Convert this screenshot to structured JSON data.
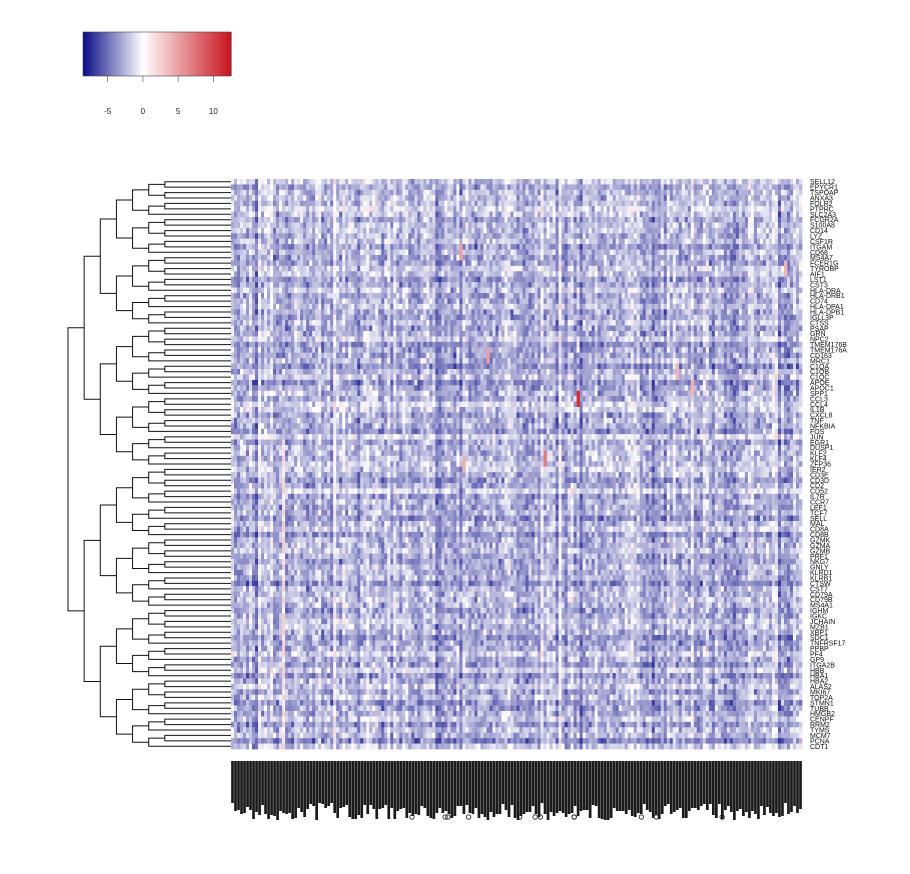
{
  "chart_data": {
    "type": "heatmap",
    "title": "",
    "xlabel": "",
    "ylabel": "",
    "color_scale": {
      "low_color": "#0a0a87",
      "mid_color": "#ffffff",
      "high_color": "#c8141e",
      "range": [
        -8.5,
        12.5
      ],
      "ticks": [
        -5,
        0,
        5,
        10
      ],
      "tick_labels": [
        "-5",
        "0",
        "5",
        "10"
      ]
    },
    "matrix_summary": {
      "n_rows": 105,
      "n_columns": 190,
      "typical_range": [
        -6,
        1
      ],
      "typical_value": -2.5,
      "hotspots": [
        {
          "row_fraction": 0.38,
          "col_fraction": 0.61,
          "value": 11
        },
        {
          "row_fraction": 0.48,
          "col_fraction": 0.55,
          "value": 7
        },
        {
          "row_fraction": 0.3,
          "col_fraction": 0.45,
          "value": 5
        },
        {
          "row_fraction": 0.12,
          "col_fraction": 0.4,
          "value": 5
        },
        {
          "row_fraction": 0.33,
          "col_fraction": 0.78,
          "value": 4
        },
        {
          "row_fraction": 0.36,
          "col_fraction": 0.81,
          "value": 4
        },
        {
          "row_fraction": 0.49,
          "col_fraction": 0.41,
          "value": 4
        },
        {
          "row_fraction": 0.15,
          "col_fraction": 0.97,
          "value": 4
        }
      ],
      "warm_column_fraction": 0.09
    },
    "row_labels": [
      "SELL12",
      "EPYCR1",
      "TSPOAP",
      "ANXA3",
      "FOLR2",
      "PTPRC",
      "SLC2A3",
      "FCGR2A",
      "S100A8",
      "CD14",
      "LYZ",
      "CSF1R",
      "ITGAM",
      "CD68",
      "MS4A7",
      "FCER1G",
      "TYROBP",
      "AIF1",
      "LST1",
      "CST3",
      "HLA-DRA",
      "HLA-DRB1",
      "CD74",
      "HLA-DPA1",
      "HLA-DPB1",
      "IGLL3P",
      "CTSS",
      "PSAP",
      "GRN",
      "NPC2",
      "TMEM176B",
      "TMEM176A",
      "CD163",
      "MRC1",
      "C1QA",
      "C1QB",
      "C1QC",
      "APOE",
      "APOC1",
      "SPP1",
      "CCL3",
      "CCL4",
      "IL1B",
      "CXCL8",
      "TNF",
      "NFKBIA",
      "FOS",
      "JUN",
      "EGR1",
      "DUSP1",
      "KLF2",
      "KLF4",
      "ZFP36",
      "IER2",
      "CD3E",
      "CD3D",
      "CD2",
      "CD52",
      "IL7R",
      "CCR7",
      "LEF1",
      "TCF7",
      "SELL",
      "MAL",
      "CD8A",
      "CD8B",
      "GZMK",
      "GZMA",
      "GZMB",
      "PRF1",
      "NKG7",
      "GNLY",
      "KLRD1",
      "KLRB1",
      "CTSW",
      "CST7",
      "CD79A",
      "CD79B",
      "MS4A1",
      "IGHM",
      "IGKC",
      "JCHAIN",
      "MZB1",
      "XBP1",
      "SDC1",
      "TNFRSF17",
      "PPBP",
      "PF4",
      "GP9",
      "ITGA2B",
      "HBB",
      "HBA1",
      "HBA2",
      "ALAS2",
      "MKI67",
      "TOP2A",
      "STMN1",
      "TUBB",
      "HMGB2",
      "CENPF",
      "RRM2",
      "TYMS",
      "MCM7",
      "PCNA",
      "CDT1"
    ],
    "column_label_count": 190
  }
}
